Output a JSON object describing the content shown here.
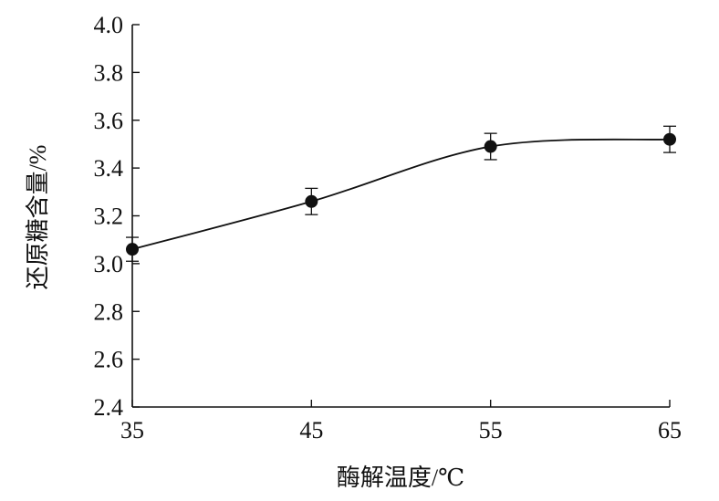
{
  "chart_data": {
    "type": "line",
    "title": "",
    "xlabel": "酶解温度/℃",
    "ylabel": "还原糖含量/%",
    "x": [
      35,
      45,
      55,
      65
    ],
    "series": [
      {
        "values": [
          3.06,
          3.26,
          3.49,
          3.52
        ],
        "error": [
          0.05,
          0.055,
          0.055,
          0.055
        ]
      }
    ],
    "xlim": [
      35,
      65
    ],
    "ylim": [
      2.4,
      4.0
    ],
    "xticks": [
      "35",
      "45",
      "55",
      "65"
    ],
    "yticks": [
      "2.4",
      "2.6",
      "2.8",
      "3.0",
      "3.2",
      "3.4",
      "3.6",
      "3.8",
      "4.0"
    ],
    "grid": false,
    "smooth": true,
    "line_color": "#111111",
    "marker_color": "#111111"
  }
}
